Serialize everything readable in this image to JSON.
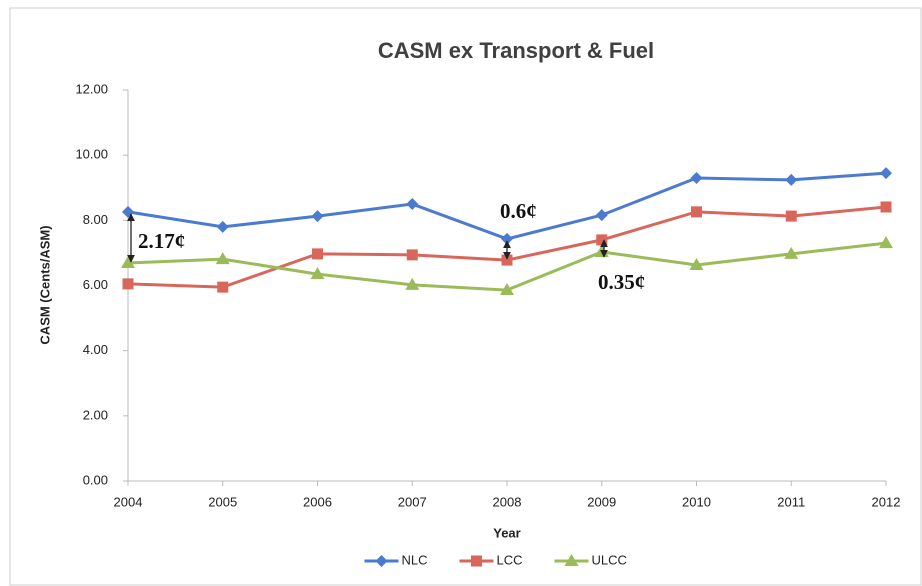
{
  "chart_data": {
    "type": "line",
    "title": "CASM ex Transport & Fuel",
    "x_label": "Year",
    "y_label": "CASM (Cents/ASM)",
    "x": [
      2004,
      2005,
      2006,
      2007,
      2008,
      2009,
      2010,
      2011,
      2012
    ],
    "xlim": [
      2004,
      2012
    ],
    "xticks": [
      2004,
      2005,
      2006,
      2007,
      2008,
      2009,
      2010,
      2011,
      2012
    ],
    "ylim": [
      0,
      12
    ],
    "yticks": [
      {
        "value": 0,
        "label": "0.00"
      },
      {
        "value": 2,
        "label": "2.00"
      },
      {
        "value": 4,
        "label": "4.00"
      },
      {
        "value": 6,
        "label": "6.00"
      },
      {
        "value": 8,
        "label": "8.00"
      },
      {
        "value": 10,
        "label": "10.00"
      },
      {
        "value": 12,
        "label": "12.00"
      }
    ],
    "grid": false,
    "legend": "bottom",
    "series": [
      {
        "name": "NLC",
        "color": "#4a7bd0",
        "marker": "diamond",
        "values": [
          8.26,
          7.8,
          8.13,
          8.5,
          7.43,
          8.16,
          9.3,
          9.24,
          9.45
        ]
      },
      {
        "name": "LCC",
        "color": "#d9665b",
        "marker": "square",
        "values": [
          6.05,
          5.95,
          6.97,
          6.94,
          6.78,
          7.4,
          8.26,
          8.13,
          8.41
        ]
      },
      {
        "name": "ULCC",
        "color": "#9bbb59",
        "marker": "triangle",
        "values": [
          6.69,
          6.81,
          6.35,
          6.02,
          5.86,
          7.03,
          6.63,
          6.97,
          7.3
        ]
      }
    ],
    "annotations": [
      "2.17¢",
      "0.6¢",
      "0.35¢"
    ]
  }
}
